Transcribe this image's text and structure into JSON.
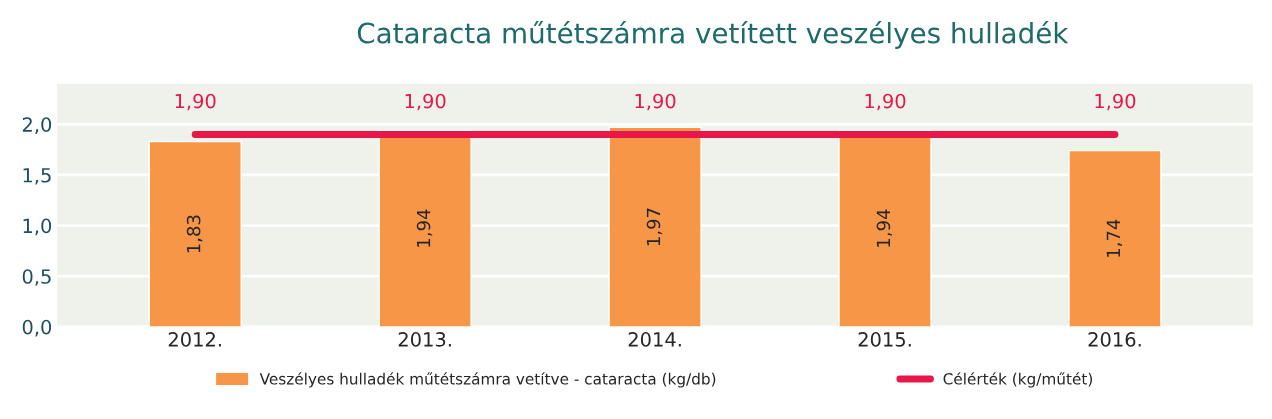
{
  "chart_data": {
    "type": "bar",
    "title": "Cataracta műtétszámra vetített veszélyes hulladék",
    "categories": [
      "2012.",
      "2013.",
      "2014.",
      "2015.",
      "2016."
    ],
    "series": [
      {
        "name": "Veszélyes hulladék műtétszámra vetítve - cataracta (kg/db)",
        "color": "#f79646",
        "values": [
          1.83,
          1.94,
          1.97,
          1.94,
          1.74
        ],
        "value_labels": [
          "1,83",
          "1,94",
          "1,97",
          "1,94",
          "1,74"
        ]
      },
      {
        "name": "Célérték (kg/műtét)",
        "type": "line",
        "color": "#e8174a",
        "values": [
          1.9,
          1.9,
          1.9,
          1.9,
          1.9
        ],
        "value_labels": [
          "1,90",
          "1,90",
          "1,90",
          "1,90",
          "1,90"
        ]
      }
    ],
    "ylim": [
      0,
      2.4
    ],
    "yticks": [
      {
        "value": 0,
        "label": "0,0"
      },
      {
        "value": 0.5,
        "label": "0,5"
      },
      {
        "value": 1.0,
        "label": "1,0"
      },
      {
        "value": 1.5,
        "label": "1,5"
      },
      {
        "value": 2.0,
        "label": "2,0"
      }
    ],
    "grid": "y",
    "legend": "bottom",
    "marker": "none",
    "line_style": "solid"
  }
}
